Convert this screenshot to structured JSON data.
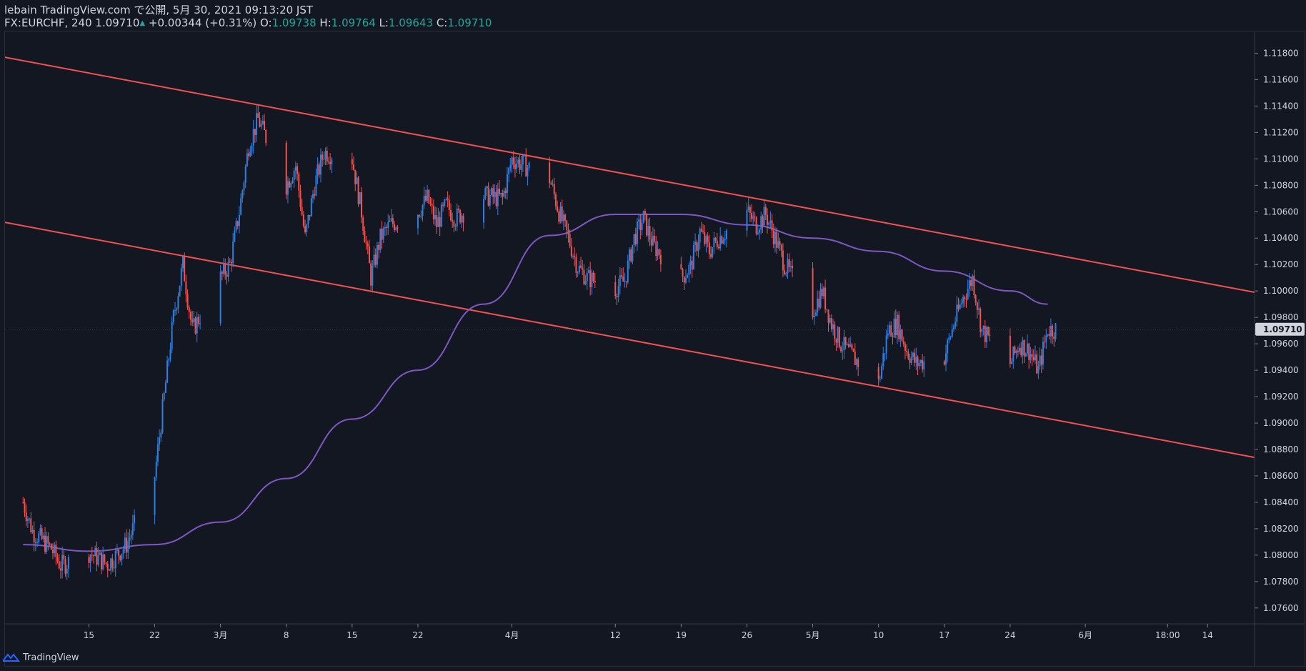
{
  "header": {
    "line1": "lebain TradingView.com で公開, 5月 30, 2021 09:13:20 JST",
    "symbol_prefix": "FX:EURCHF, 240 1.09710",
    "change_arrow": "▲",
    "change": "+0.00344 (+0.31%)",
    "o_label": "O:",
    "o_value": "1.09738",
    "h_label": "H:",
    "h_value": "1.09764",
    "l_label": "L:",
    "l_value": "1.09643",
    "c_label": "C:",
    "c_value": "1.09710"
  },
  "footer": {
    "brand": "TradingView"
  },
  "colors": {
    "background": "#131722",
    "up_candle": "#2f7fe0",
    "down_candle": "#ef5350",
    "channel": "#f05151",
    "moving_average": "#7e57c2",
    "grid_text": "#d1d4dc",
    "price_label_bg": "#d1d4dc",
    "accent_teal": "#26a69a"
  },
  "chart_data": {
    "type": "candlestick",
    "symbol": "FX:EURCHF",
    "interval": "240",
    "price_axis": {
      "ticks": [
        "1.11800",
        "1.11600",
        "1.11400",
        "1.11200",
        "1.11000",
        "1.10800",
        "1.10600",
        "1.10400",
        "1.10200",
        "1.10000",
        "1.09800",
        "1.09600",
        "1.09400",
        "1.09200",
        "1.09000",
        "1.08800",
        "1.08600",
        "1.08400",
        "1.08200",
        "1.08000",
        "1.07800",
        "1.07600"
      ],
      "current_price_label": "1.09710",
      "ylim": [
        1.0748,
        1.1197
      ]
    },
    "time_axis": {
      "labels": [
        "15",
        "22",
        "3月",
        "8",
        "15",
        "22",
        "4月",
        "12",
        "19",
        "26",
        "5月",
        "10",
        "17",
        "24",
        "6月",
        "18:00",
        "14"
      ],
      "label_dates": [
        "2021-02-15",
        "2021-02-22",
        "2021-03-01",
        "2021-03-08",
        "2021-03-15",
        "2021-03-22",
        "2021-04-01",
        "2021-04-12",
        "2021-04-19",
        "2021-04-26",
        "2021-05-03",
        "2021-05-10",
        "2021-05-17",
        "2021-05-24",
        "2021-06-01",
        "2021-06-09 18:00",
        "2021-06-14"
      ]
    },
    "series": [
      {
        "name": "",
        "kind": "candles",
        "close_path_dates": [
          "2021-02-08",
          "2021-02-09",
          "2021-02-11",
          "2021-02-12",
          "2021-02-15",
          "2021-02-17",
          "2021-02-19",
          "2021-02-22",
          "2021-02-23",
          "2021-02-24",
          "2021-02-25",
          "2021-02-26",
          "2021-03-01",
          "2021-03-02",
          "2021-03-03",
          "2021-03-04",
          "2021-03-05",
          "2021-03-08",
          "2021-03-09",
          "2021-03-10",
          "2021-03-11",
          "2021-03-12",
          "2021-03-15",
          "2021-03-16",
          "2021-03-17",
          "2021-03-18",
          "2021-03-19",
          "2021-03-22",
          "2021-03-23",
          "2021-03-24",
          "2021-03-25",
          "2021-03-26",
          "2021-03-29",
          "2021-03-31",
          "2021-04-01",
          "2021-04-05",
          "2021-04-06",
          "2021-04-07",
          "2021-04-08",
          "2021-04-09",
          "2021-04-12",
          "2021-04-13",
          "2021-04-14",
          "2021-04-15",
          "2021-04-16",
          "2021-04-19",
          "2021-04-20",
          "2021-04-21",
          "2021-04-22",
          "2021-04-23",
          "2021-04-26",
          "2021-04-27",
          "2021-04-28",
          "2021-04-29",
          "2021-04-30",
          "2021-05-03",
          "2021-05-04",
          "2021-05-05",
          "2021-05-06",
          "2021-05-07",
          "2021-05-10",
          "2021-05-11",
          "2021-05-12",
          "2021-05-13",
          "2021-05-14",
          "2021-05-17",
          "2021-05-18",
          "2021-05-19",
          "2021-05-20",
          "2021-05-21",
          "2021-05-24",
          "2021-05-25",
          "2021-05-26",
          "2021-05-27",
          "2021-05-28"
        ],
        "close_path_values": [
          1.084,
          1.0818,
          1.0805,
          1.0792,
          1.0802,
          1.0793,
          1.0808,
          1.086,
          1.092,
          1.098,
          1.102,
          1.097,
          1.101,
          1.102,
          1.106,
          1.111,
          1.113,
          1.108,
          1.1095,
          1.104,
          1.108,
          1.1105,
          1.11,
          1.106,
          1.101,
          1.104,
          1.105,
          1.106,
          1.107,
          1.105,
          1.1065,
          1.1055,
          1.1072,
          1.107,
          1.11,
          1.1085,
          1.106,
          1.104,
          1.1018,
          1.101,
          1.1002,
          1.1008,
          1.104,
          1.1055,
          1.1035,
          1.101,
          1.1018,
          1.1045,
          1.103,
          1.104,
          1.106,
          1.105,
          1.1058,
          1.104,
          1.102,
          1.0985,
          1.1,
          1.0975,
          1.096,
          1.0952,
          1.093,
          1.097,
          1.0975,
          1.0955,
          1.0945,
          1.095,
          1.0975,
          1.0995,
          1.101,
          1.097,
          1.0945,
          1.096,
          1.0955,
          1.094,
          1.0971
        ]
      },
      {
        "name": "",
        "kind": "moving_average",
        "dates": [
          "2021-02-08",
          "2021-02-15",
          "2021-02-22",
          "2021-03-01",
          "2021-03-08",
          "2021-03-15",
          "2021-03-22",
          "2021-03-29",
          "2021-04-05",
          "2021-04-12",
          "2021-04-19",
          "2021-04-26",
          "2021-05-03",
          "2021-05-10",
          "2021-05-17",
          "2021-05-24",
          "2021-05-28"
        ],
        "values": [
          1.0808,
          1.0803,
          1.0808,
          1.0825,
          1.0858,
          1.0903,
          1.094,
          1.099,
          1.1042,
          1.1058,
          1.1058,
          1.105,
          1.104,
          1.103,
          1.1015,
          1.1,
          1.099
        ]
      },
      {
        "name": "",
        "kind": "trendline",
        "points": [
          {
            "date": "2021-02-06",
            "value": 1.1177
          },
          {
            "date": "2021-06-19",
            "value": 1.0999
          }
        ]
      },
      {
        "name": "",
        "kind": "trendline",
        "points": [
          {
            "date": "2021-02-06",
            "value": 1.1052
          },
          {
            "date": "2021-06-19",
            "value": 1.0874
          }
        ]
      }
    ]
  }
}
